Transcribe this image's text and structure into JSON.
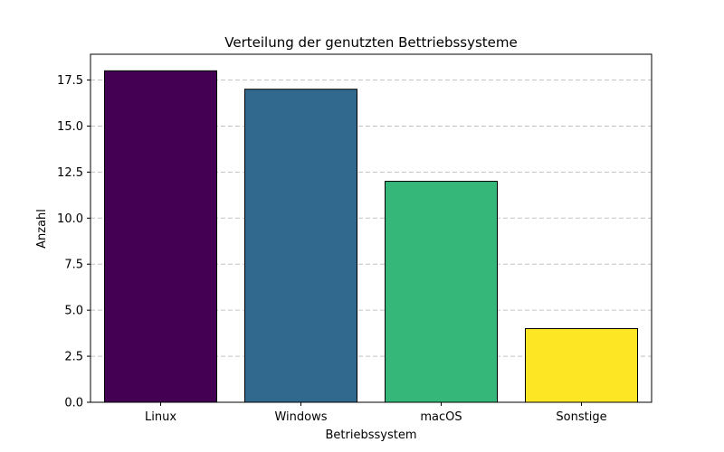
{
  "chart_data": {
    "type": "bar",
    "title": "Verteilung der genutzten Bettriebssysteme",
    "xlabel": "Betriebssystem",
    "ylabel": "Anzahl",
    "categories": [
      "Linux",
      "Windows",
      "macOS",
      "Sonstige"
    ],
    "values": [
      18,
      17,
      12,
      4
    ],
    "colors": [
      "#440154",
      "#31688e",
      "#35b779",
      "#fde725"
    ],
    "ylim": [
      0,
      18.9
    ],
    "yticks": [
      0.0,
      2.5,
      5.0,
      7.5,
      10.0,
      12.5,
      15.0,
      17.5
    ],
    "ytick_labels": [
      "0.0",
      "2.5",
      "5.0",
      "7.5",
      "10.0",
      "12.5",
      "15.0",
      "17.5"
    ],
    "grid": "y-dashed",
    "edge_color": "#000000"
  }
}
